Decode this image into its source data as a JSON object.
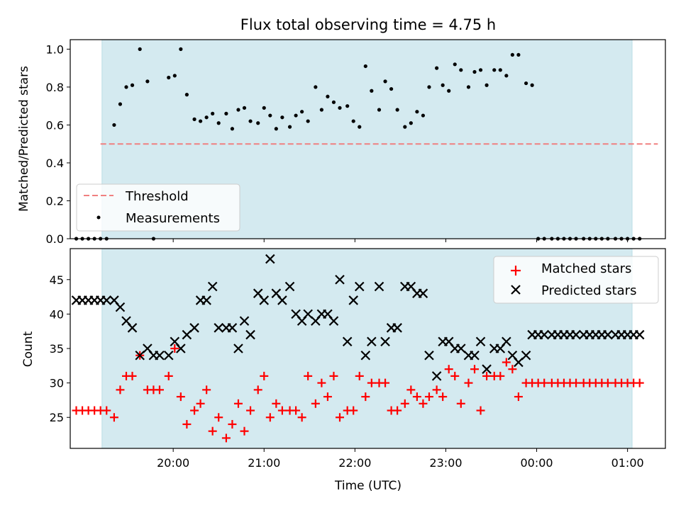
{
  "chart_data": [
    {
      "type": "scatter",
      "title": "Flux total observing time = 4.75 h",
      "ylabel": "Matched/Predicted stars",
      "ylim": [
        0,
        1.05
      ],
      "yticks": [
        0.0,
        0.2,
        0.4,
        0.6,
        0.8,
        1.0
      ],
      "ytick_labels": [
        "0.0",
        "0.2",
        "0.4",
        "0.6",
        "0.8",
        "1.0"
      ],
      "xlim_minutes": [
        1132,
        1525
      ],
      "shaded_span_minutes": [
        1153,
        1503
      ],
      "shade_color": "#d4eaf0",
      "threshold": {
        "name": "Threshold",
        "y": 0.5,
        "x_range_minutes": [
          1152,
          1520
        ],
        "color": "#f08080",
        "style": "dashed"
      },
      "measurements": {
        "name": "Measurements",
        "color": "#000000",
        "x": [
          1136,
          1140,
          1144,
          1148,
          1152,
          1156,
          1161,
          1165,
          1169,
          1173,
          1178,
          1183,
          1187,
          1197,
          1201,
          1205,
          1209,
          1214,
          1218,
          1222,
          1226,
          1230,
          1235,
          1239,
          1243,
          1247,
          1251,
          1256,
          1260,
          1264,
          1268,
          1272,
          1277,
          1281,
          1285,
          1289,
          1294,
          1298,
          1302,
          1306,
          1310,
          1315,
          1319,
          1323,
          1327,
          1331,
          1336,
          1340,
          1344,
          1348,
          1353,
          1357,
          1361,
          1365,
          1369,
          1374,
          1378,
          1382,
          1386,
          1390,
          1395,
          1399,
          1403,
          1407,
          1412,
          1416,
          1420,
          1424,
          1428,
          1433,
          1437,
          1441,
          1445,
          1450,
          1454,
          1458,
          1462,
          1466,
          1471,
          1475,
          1479,
          1483,
          1487,
          1492,
          1496,
          1500,
          1504,
          1508
        ],
        "y": [
          0.0,
          0.0,
          0.0,
          0.0,
          0.0,
          0.0,
          0.6,
          0.71,
          0.8,
          0.81,
          1.0,
          0.83,
          0.0,
          0.85,
          0.86,
          1.0,
          0.76,
          0.63,
          0.62,
          0.64,
          0.66,
          0.61,
          0.66,
          0.58,
          0.68,
          0.69,
          0.62,
          0.61,
          0.69,
          0.65,
          0.58,
          0.64,
          0.59,
          0.65,
          0.67,
          0.62,
          0.8,
          0.68,
          0.75,
          0.72,
          0.69,
          0.7,
          0.62,
          0.59,
          0.91,
          0.78,
          0.68,
          0.83,
          0.79,
          0.68,
          0.59,
          0.61,
          0.67,
          0.65,
          0.8,
          0.9,
          0.81,
          0.78,
          0.92,
          0.89,
          0.8,
          0.88,
          0.89,
          0.81,
          0.89,
          0.89,
          0.86,
          0.97,
          0.97,
          0.82,
          0.81,
          0.0,
          0.0,
          0.0,
          0.0,
          0.0,
          0.0,
          0.0,
          0.0,
          0.0,
          0.0,
          0.0,
          0.0,
          0.0,
          0.0,
          0.0,
          0.0,
          0.0
        ]
      },
      "legend": {
        "placement": "lower-left",
        "entries": [
          "Threshold",
          "Measurements"
        ]
      }
    },
    {
      "type": "scatter",
      "xlabel": "Time (UTC)",
      "ylabel": "Count",
      "ylim": [
        20.5,
        49.5
      ],
      "yticks": [
        25,
        30,
        35,
        40,
        45
      ],
      "ytick_labels": [
        "25",
        "30",
        "35",
        "40",
        "45"
      ],
      "xlim_minutes": [
        1132,
        1525
      ],
      "xticks_minutes": [
        1200,
        1260,
        1320,
        1380,
        1440,
        1500
      ],
      "xtick_labels": [
        "20:00",
        "21:00",
        "22:00",
        "23:00",
        "00:00",
        "01:00"
      ],
      "shaded_span_minutes": [
        1153,
        1503
      ],
      "shade_color": "#d4eaf0",
      "series": [
        {
          "name": "Matched stars",
          "marker": "plus",
          "color": "#ff0000",
          "x": [
            1136,
            1140,
            1144,
            1148,
            1152,
            1156,
            1161,
            1165,
            1169,
            1173,
            1178,
            1183,
            1187,
            1191,
            1197,
            1201,
            1205,
            1209,
            1214,
            1218,
            1222,
            1226,
            1230,
            1235,
            1239,
            1243,
            1247,
            1251,
            1256,
            1260,
            1264,
            1268,
            1272,
            1277,
            1281,
            1285,
            1289,
            1294,
            1298,
            1302,
            1306,
            1310,
            1315,
            1319,
            1323,
            1327,
            1331,
            1336,
            1340,
            1344,
            1348,
            1353,
            1357,
            1361,
            1365,
            1369,
            1374,
            1378,
            1382,
            1386,
            1390,
            1395,
            1399,
            1403,
            1407,
            1412,
            1416,
            1420,
            1424,
            1428,
            1433,
            1437,
            1441,
            1445,
            1450,
            1454,
            1458,
            1462,
            1466,
            1471,
            1475,
            1479,
            1483,
            1487,
            1492,
            1496,
            1500,
            1504,
            1508
          ],
          "y": [
            26,
            26,
            26,
            26,
            26,
            26,
            25,
            29,
            31,
            31,
            34,
            29,
            29,
            29,
            31,
            35,
            28,
            24,
            26,
            27,
            29,
            23,
            25,
            22,
            24,
            27,
            23,
            26,
            29,
            31,
            25,
            27,
            26,
            26,
            26,
            25,
            31,
            27,
            30,
            28,
            31,
            25,
            26,
            26,
            31,
            28,
            30,
            30,
            30,
            26,
            26,
            27,
            29,
            28,
            27,
            28,
            29,
            28,
            32,
            31,
            27,
            30,
            32,
            26,
            31,
            31,
            31,
            33,
            32,
            28,
            30,
            30,
            30,
            30,
            30,
            30,
            30,
            30,
            30,
            30,
            30,
            30,
            30,
            30,
            30,
            30,
            30,
            30,
            30
          ]
        },
        {
          "name": "Predicted stars",
          "marker": "x",
          "color": "#000000",
          "x": [
            1136,
            1140,
            1144,
            1148,
            1152,
            1156,
            1161,
            1165,
            1169,
            1173,
            1178,
            1183,
            1187,
            1191,
            1197,
            1201,
            1205,
            1209,
            1214,
            1218,
            1222,
            1226,
            1230,
            1235,
            1239,
            1243,
            1247,
            1251,
            1256,
            1260,
            1264,
            1268,
            1272,
            1277,
            1281,
            1285,
            1289,
            1294,
            1298,
            1302,
            1306,
            1310,
            1315,
            1319,
            1323,
            1327,
            1331,
            1336,
            1340,
            1344,
            1348,
            1353,
            1357,
            1361,
            1365,
            1369,
            1374,
            1378,
            1382,
            1386,
            1390,
            1395,
            1399,
            1403,
            1407,
            1412,
            1416,
            1420,
            1424,
            1428,
            1433,
            1437,
            1441,
            1445,
            1450,
            1454,
            1458,
            1462,
            1466,
            1471,
            1475,
            1479,
            1483,
            1487,
            1492,
            1496,
            1500,
            1504,
            1508
          ],
          "y": [
            42,
            42,
            42,
            42,
            42,
            42,
            42,
            41,
            39,
            38,
            34,
            35,
            34,
            34,
            34,
            36,
            35,
            37,
            38,
            42,
            42,
            44,
            38,
            38,
            38,
            35,
            39,
            37,
            43,
            42,
            48,
            43,
            42,
            44,
            40,
            39,
            40,
            39,
            40,
            40,
            39,
            45,
            36,
            42,
            44,
            34,
            36,
            44,
            36,
            38,
            38,
            44,
            44,
            43,
            43,
            34,
            31,
            36,
            36,
            35,
            35,
            34,
            34,
            36,
            32,
            35,
            35,
            36,
            34,
            33,
            34,
            37,
            37,
            37,
            37,
            37,
            37,
            37,
            37,
            37,
            37,
            37,
            37,
            37,
            37,
            37,
            37,
            37,
            37
          ]
        }
      ],
      "legend": {
        "placement": "upper-right",
        "entries": [
          "Matched stars",
          "Predicted stars"
        ]
      }
    }
  ]
}
